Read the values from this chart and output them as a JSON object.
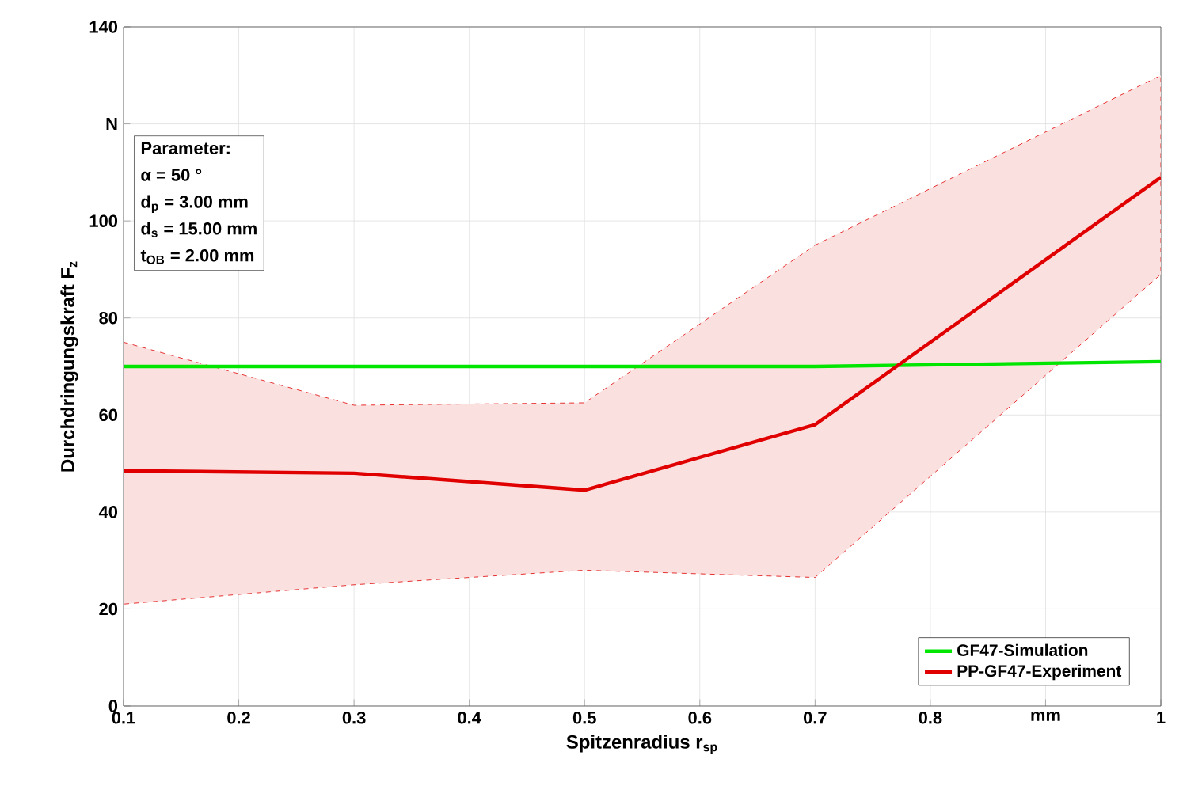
{
  "chart_data": {
    "type": "line",
    "xlabel": "Spitzenradius r$_{sp}$",
    "ylabel": "Durchdringungskraft F$_{z}$",
    "xlim": [
      0.1,
      1
    ],
    "xticks": [
      0.1,
      0.2,
      0.3,
      0.4,
      0.5,
      0.6,
      0.7,
      0.8,
      {
        "value": 0.9,
        "label": "mm"
      },
      1
    ],
    "ylim": [
      0,
      140
    ],
    "yticks": [
      0,
      20,
      40,
      60,
      80,
      100,
      {
        "value": 120,
        "label": "N"
      },
      140
    ],
    "grid": true,
    "legend": "bottom right",
    "marker": "none",
    "line_style": "solid",
    "annotations": [
      "Parameter:",
      "α =  50 °",
      "d$_{p}$ = 3.00 mm",
      "d$_{s}$ = 15.00 mm",
      "t$_{OB}$ = 2.00 mm"
    ],
    "x": [
      0.1,
      0.3,
      0.5,
      0.7,
      1.0
    ],
    "series": [
      {
        "name": "GF47-Simulation",
        "color": "#00e600",
        "values": [
          70,
          70,
          70,
          70,
          71
        ]
      },
      {
        "name": "PP-GF47-Experiment",
        "color": "#e00000",
        "values": [
          48.5,
          48,
          44.5,
          58,
          109
        ],
        "lower": [
          21,
          25,
          28,
          26.5,
          89
        ],
        "upper": [
          75,
          62,
          62.5,
          95,
          130
        ]
      }
    ]
  }
}
